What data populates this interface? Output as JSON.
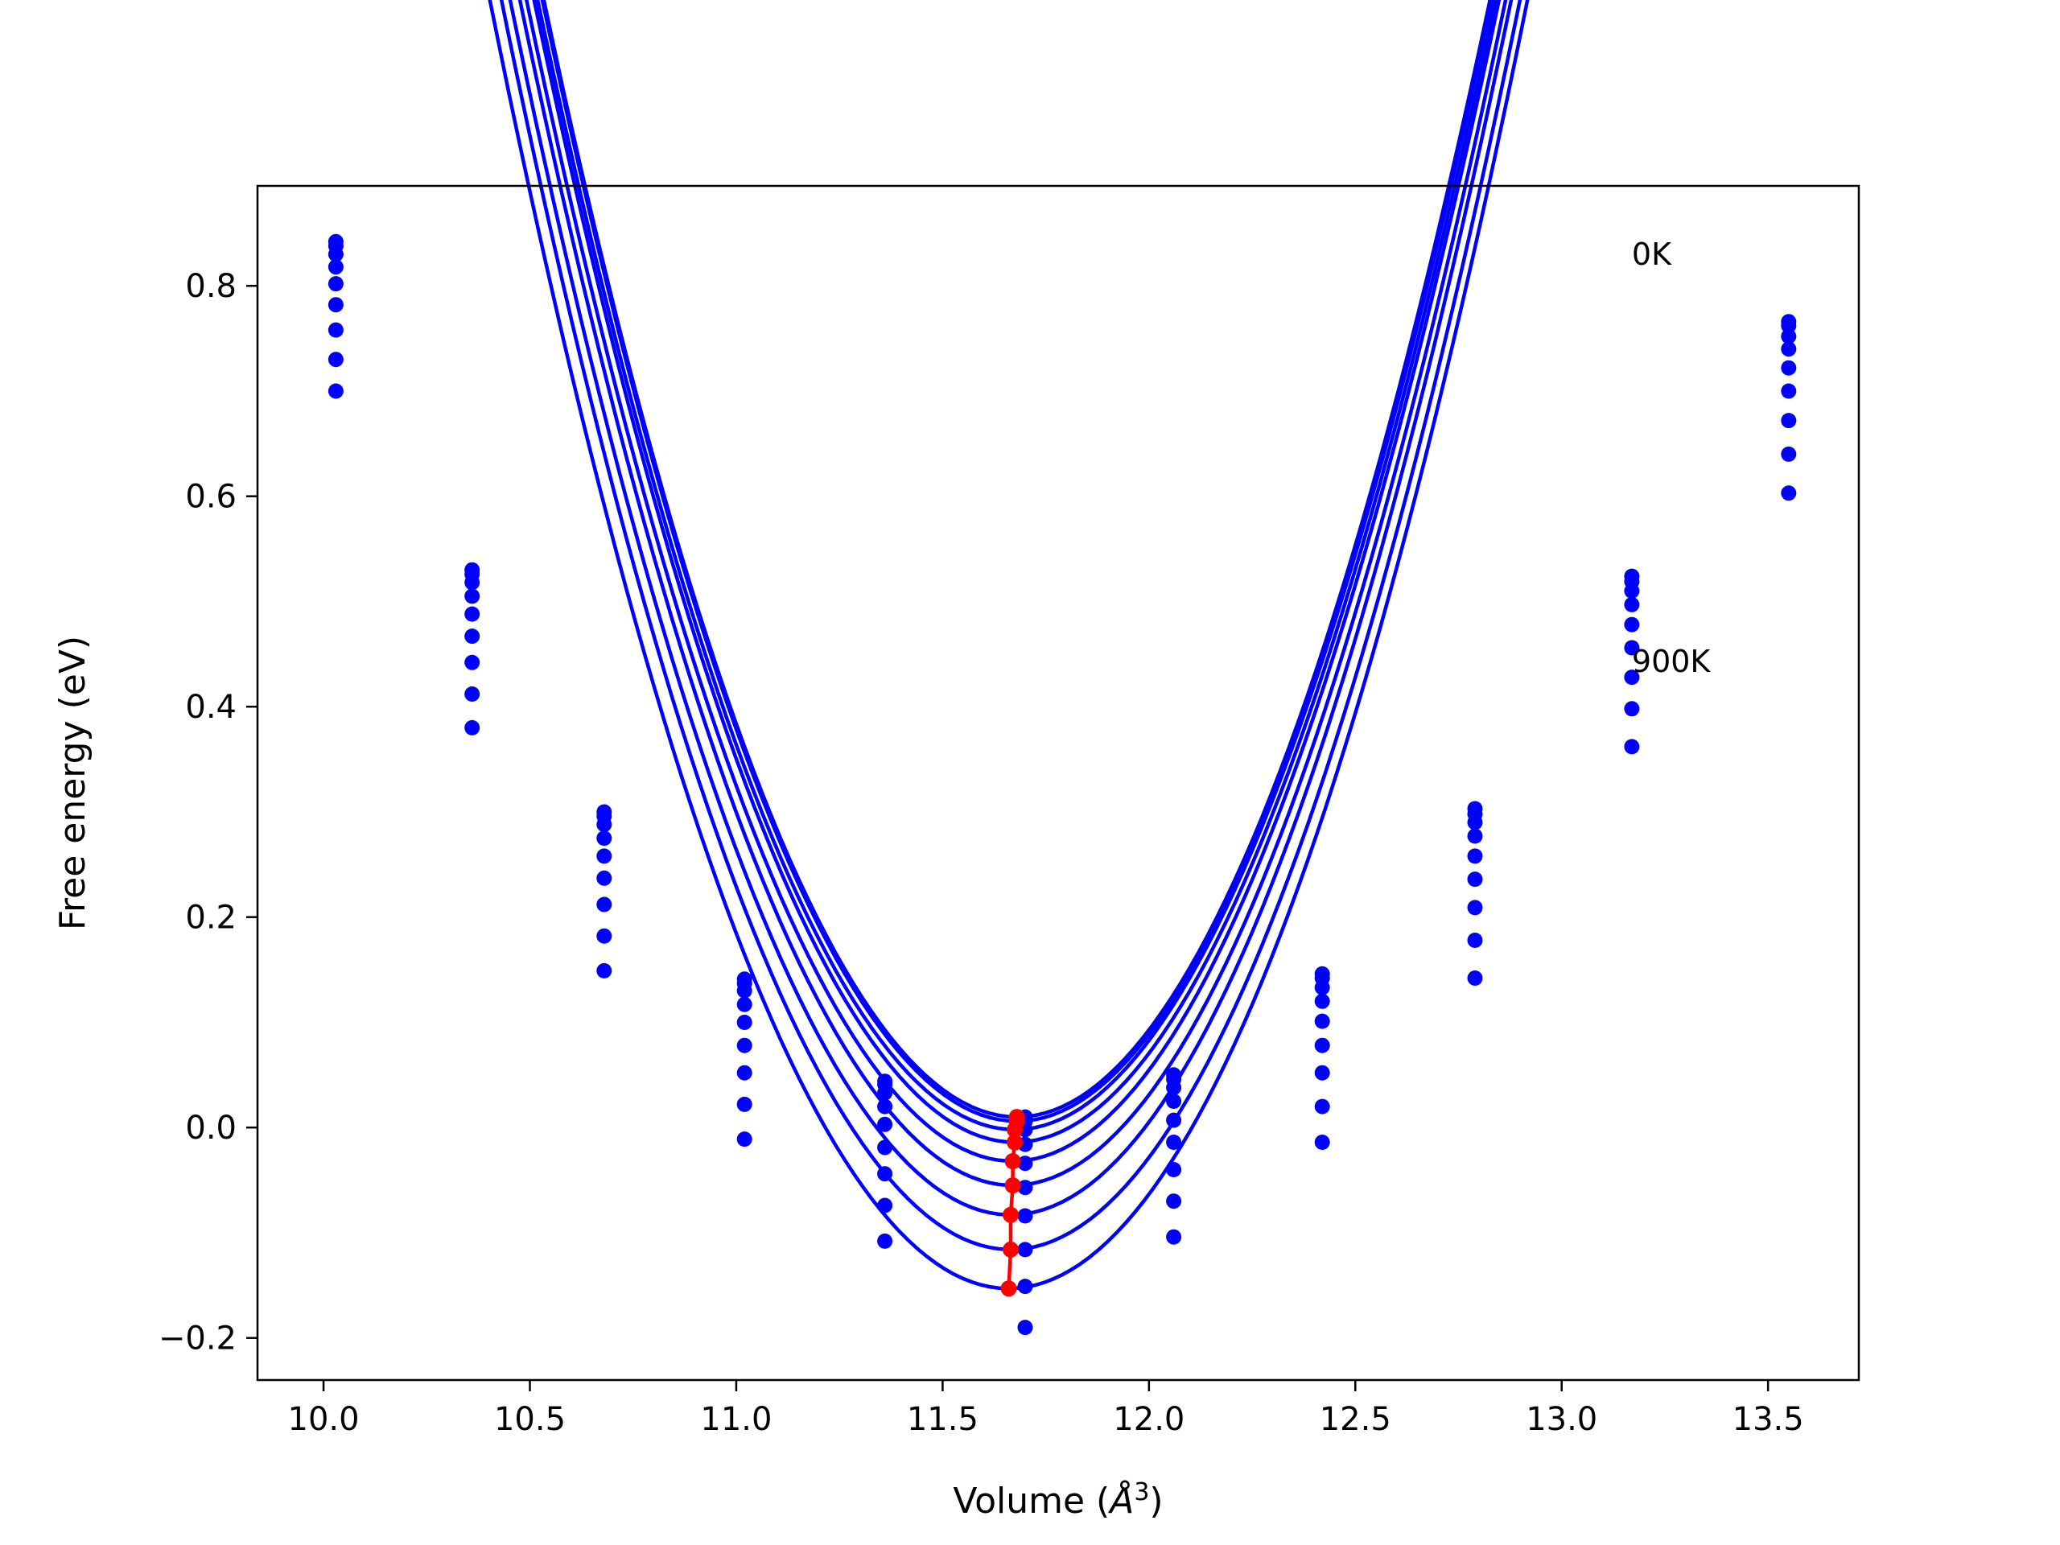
{
  "chart_data": {
    "type": "line",
    "title": "",
    "xlabel": "Volume (",
    "xlabel_unit": "Å",
    "xlabel_power": "3",
    "xlabel_close": ")",
    "ylabel": "Free energy (eV)",
    "xlim": [
      9.84,
      13.72
    ],
    "ylim": [
      -0.24,
      0.895
    ],
    "xticks": [
      10.0,
      10.5,
      11.0,
      11.5,
      12.0,
      12.5,
      13.0,
      13.5
    ],
    "xtick_labels": [
      "10.0",
      "10.5",
      "11.0",
      "11.5",
      "12.0",
      "12.5",
      "13.0",
      "13.5"
    ],
    "yticks": [
      -0.2,
      0.0,
      0.2,
      0.4,
      0.6,
      0.8
    ],
    "ytick_labels": [
      "−0.2",
      "0.0",
      "0.2",
      "0.4",
      "0.6",
      "0.8"
    ],
    "grid": false,
    "legend": "none",
    "colors": {
      "curve": "#0000ff",
      "minimum": "#ff0000",
      "frame": "#000000"
    },
    "annotations": [
      {
        "text": "0K",
        "x": 13.17,
        "y": 0.82
      },
      {
        "text": "900K",
        "x": 13.17,
        "y": 0.433
      }
    ],
    "volumes": [
      10.03,
      10.36,
      10.68,
      11.02,
      11.36,
      11.7,
      12.06,
      12.42,
      12.79,
      13.17,
      13.55
    ],
    "series": [
      {
        "values": [
          0.842,
          0.53,
          0.3,
          0.141,
          0.044,
          0.01,
          0.05,
          0.146,
          0.303,
          0.524,
          0.766
        ],
        "fit": {
          "a": 0.808,
          "v0": 11.68,
          "e0": 0.01
        }
      },
      {
        "values": [
          0.838,
          0.526,
          0.296,
          0.137,
          0.041,
          0.006,
          0.046,
          0.142,
          0.298,
          0.519,
          0.762
        ],
        "fit": {
          "a": 0.806,
          "v0": 11.68,
          "e0": 0.006
        }
      },
      {
        "values": [
          0.83,
          0.518,
          0.288,
          0.13,
          0.033,
          -0.002,
          0.038,
          0.133,
          0.29,
          0.51,
          0.752
        ],
        "fit": {
          "a": 0.803,
          "v0": 11.675,
          "e0": -0.002
        }
      },
      {
        "values": [
          0.818,
          0.505,
          0.275,
          0.117,
          0.02,
          -0.016,
          0.025,
          0.12,
          0.277,
          0.497,
          0.74
        ],
        "fit": {
          "a": 0.8,
          "v0": 11.675,
          "e0": -0.014
        }
      },
      {
        "values": [
          0.802,
          0.488,
          0.258,
          0.1,
          0.003,
          -0.034,
          0.007,
          0.101,
          0.258,
          0.478,
          0.722
        ],
        "fit": {
          "a": 0.795,
          "v0": 11.67,
          "e0": -0.032
        }
      },
      {
        "values": [
          0.782,
          0.467,
          0.237,
          0.078,
          -0.019,
          -0.057,
          -0.014,
          0.078,
          0.236,
          0.456,
          0.7
        ],
        "fit": {
          "a": 0.79,
          "v0": 11.67,
          "e0": -0.055
        }
      },
      {
        "values": [
          0.758,
          0.442,
          0.212,
          0.052,
          -0.044,
          -0.084,
          -0.04,
          0.052,
          0.209,
          0.428,
          0.672
        ],
        "fit": {
          "a": 0.785,
          "v0": 11.665,
          "e0": -0.083
        }
      },
      {
        "values": [
          0.73,
          0.412,
          0.182,
          0.022,
          -0.074,
          -0.116,
          -0.07,
          0.02,
          0.178,
          0.398,
          0.64
        ],
        "fit": {
          "a": 0.78,
          "v0": 11.665,
          "e0": -0.116
        }
      },
      {
        "values": [
          0.7,
          0.38,
          0.149,
          -0.011,
          -0.108,
          -0.151,
          -0.104,
          -0.014,
          0.142,
          0.362,
          0.603
        ],
        "fit": {
          "a": 0.775,
          "v0": 11.66,
          "e0": -0.153
        }
      }
    ],
    "stray_points": [
      {
        "x": 11.7,
        "y": -0.19
      }
    ]
  }
}
